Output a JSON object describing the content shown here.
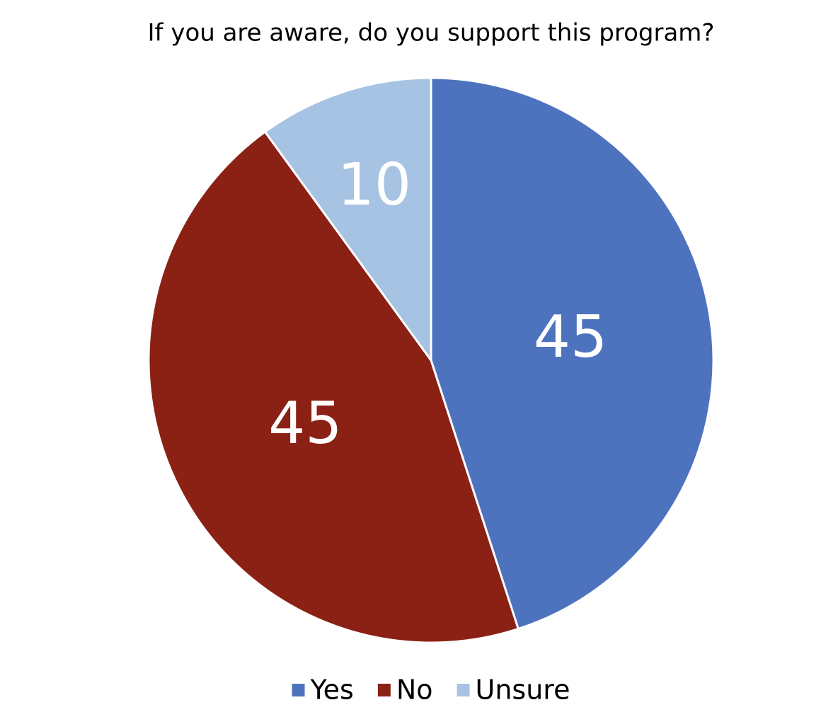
{
  "chart_data": {
    "type": "pie",
    "title": "If you are aware, do you support this program?",
    "categories": [
      "Yes",
      "No",
      "Unsure"
    ],
    "values": [
      45,
      45,
      10
    ],
    "colors": [
      "#4e73be",
      "#8b2014",
      "#a6c3e3"
    ],
    "legend": "bottom"
  }
}
